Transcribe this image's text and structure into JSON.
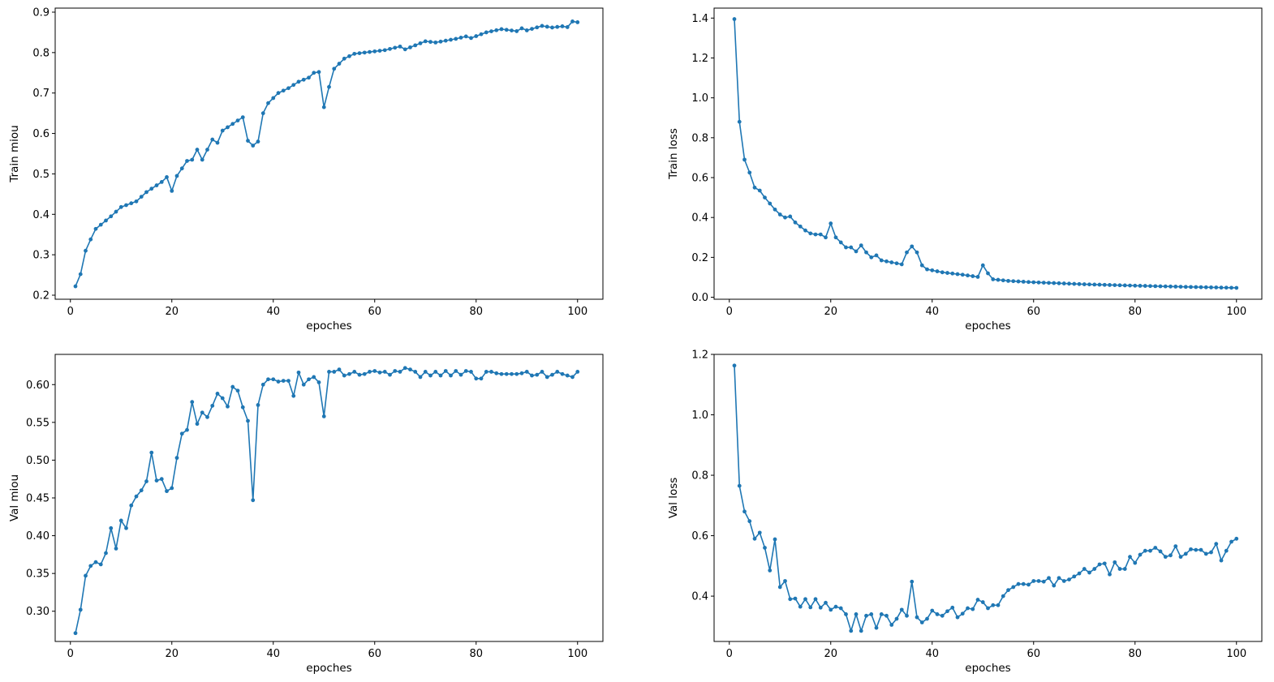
{
  "colors": {
    "line": "#1f77b4",
    "axes": "#000000",
    "background": "#ffffff"
  },
  "chart_data": [
    {
      "type": "line",
      "title": "",
      "xlabel": "epoches",
      "ylabel": "Train miou",
      "xlim": [
        -3,
        105
      ],
      "ylim": [
        0.19,
        0.91
      ],
      "xticks": [
        0,
        20,
        40,
        60,
        80,
        100
      ],
      "yticks": [
        0.2,
        0.3,
        0.4,
        0.5,
        0.6,
        0.7,
        0.8,
        0.9
      ],
      "ytick_labels": [
        "0.2",
        "0.3",
        "0.4",
        "0.5",
        "0.6",
        "0.7",
        "0.8",
        "0.9"
      ],
      "knots": [
        [
          1,
          0.222
        ],
        [
          2,
          0.252
        ],
        [
          3,
          0.31
        ],
        [
          4,
          0.338
        ],
        [
          5,
          0.364
        ],
        [
          8,
          0.395
        ],
        [
          10,
          0.418
        ],
        [
          13,
          0.432
        ],
        [
          15,
          0.455
        ],
        [
          18,
          0.48
        ],
        [
          19,
          0.492
        ],
        [
          20,
          0.458
        ],
        [
          21,
          0.495
        ],
        [
          23,
          0.532
        ],
        [
          24,
          0.535
        ],
        [
          25,
          0.56
        ],
        [
          26,
          0.535
        ],
        [
          27,
          0.56
        ],
        [
          28,
          0.585
        ],
        [
          29,
          0.577
        ],
        [
          30,
          0.607
        ],
        [
          33,
          0.632
        ],
        [
          34,
          0.64
        ],
        [
          35,
          0.582
        ],
        [
          36,
          0.57
        ],
        [
          37,
          0.58
        ],
        [
          38,
          0.65
        ],
        [
          39,
          0.675
        ],
        [
          41,
          0.7
        ],
        [
          43,
          0.712
        ],
        [
          45,
          0.728
        ],
        [
          47,
          0.738
        ],
        [
          48,
          0.75
        ],
        [
          49,
          0.752
        ],
        [
          50,
          0.665
        ],
        [
          51,
          0.715
        ],
        [
          52,
          0.76
        ],
        [
          54,
          0.785
        ],
        [
          56,
          0.797
        ],
        [
          60,
          0.803
        ],
        [
          62,
          0.806
        ],
        [
          65,
          0.815
        ],
        [
          66,
          0.808
        ],
        [
          70,
          0.828
        ],
        [
          72,
          0.825
        ],
        [
          76,
          0.834
        ],
        [
          78,
          0.84
        ],
        [
          79,
          0.836
        ],
        [
          82,
          0.85
        ],
        [
          85,
          0.858
        ],
        [
          88,
          0.853
        ],
        [
          89,
          0.86
        ],
        [
          90,
          0.855
        ],
        [
          93,
          0.866
        ],
        [
          95,
          0.862
        ],
        [
          97,
          0.865
        ],
        [
          98,
          0.863
        ],
        [
          99,
          0.877
        ],
        [
          100,
          0.875
        ]
      ]
    },
    {
      "type": "line",
      "title": "",
      "xlabel": "epoches",
      "ylabel": "Train loss",
      "xlim": [
        -3,
        105
      ],
      "ylim": [
        -0.01,
        1.45
      ],
      "xticks": [
        0,
        20,
        40,
        60,
        80,
        100
      ],
      "yticks": [
        0.0,
        0.2,
        0.4,
        0.6,
        0.8,
        1.0,
        1.2,
        1.4
      ],
      "ytick_labels": [
        "0.0",
        "0.2",
        "0.4",
        "0.6",
        "0.8",
        "1.0",
        "1.2",
        "1.4"
      ],
      "knots": [
        [
          1,
          1.395
        ],
        [
          2,
          0.88
        ],
        [
          3,
          0.69
        ],
        [
          4,
          0.625
        ],
        [
          5,
          0.55
        ],
        [
          6,
          0.535
        ],
        [
          7,
          0.5
        ],
        [
          8,
          0.47
        ],
        [
          9,
          0.44
        ],
        [
          10,
          0.415
        ],
        [
          11,
          0.4
        ],
        [
          12,
          0.405
        ],
        [
          13,
          0.375
        ],
        [
          14,
          0.355
        ],
        [
          15,
          0.335
        ],
        [
          16,
          0.32
        ],
        [
          17,
          0.315
        ],
        [
          18,
          0.315
        ],
        [
          19,
          0.3
        ],
        [
          20,
          0.37
        ],
        [
          21,
          0.3
        ],
        [
          22,
          0.275
        ],
        [
          23,
          0.25
        ],
        [
          24,
          0.25
        ],
        [
          25,
          0.23
        ],
        [
          26,
          0.26
        ],
        [
          27,
          0.225
        ],
        [
          28,
          0.2
        ],
        [
          29,
          0.21
        ],
        [
          30,
          0.185
        ],
        [
          33,
          0.17
        ],
        [
          34,
          0.165
        ],
        [
          35,
          0.225
        ],
        [
          36,
          0.255
        ],
        [
          37,
          0.225
        ],
        [
          38,
          0.16
        ],
        [
          39,
          0.14
        ],
        [
          42,
          0.125
        ],
        [
          46,
          0.113
        ],
        [
          49,
          0.102
        ],
        [
          50,
          0.16
        ],
        [
          51,
          0.12
        ],
        [
          52,
          0.09
        ],
        [
          55,
          0.082
        ],
        [
          60,
          0.075
        ],
        [
          70,
          0.065
        ],
        [
          80,
          0.058
        ],
        [
          90,
          0.052
        ],
        [
          100,
          0.047
        ]
      ]
    },
    {
      "type": "line",
      "title": "",
      "xlabel": "epoches",
      "ylabel": "Val miou",
      "xlim": [
        -3,
        105
      ],
      "ylim": [
        0.26,
        0.64
      ],
      "xticks": [
        0,
        20,
        40,
        60,
        80,
        100
      ],
      "yticks": [
        0.3,
        0.35,
        0.4,
        0.45,
        0.5,
        0.55,
        0.6
      ],
      "ytick_labels": [
        "0.30",
        "0.35",
        "0.40",
        "0.45",
        "0.50",
        "0.55",
        "0.60"
      ],
      "knots": [
        [
          1,
          0.271
        ],
        [
          2,
          0.302
        ],
        [
          3,
          0.347
        ],
        [
          4,
          0.36
        ],
        [
          5,
          0.365
        ],
        [
          6,
          0.362
        ],
        [
          7,
          0.377
        ],
        [
          8,
          0.41
        ],
        [
          9,
          0.383
        ],
        [
          10,
          0.42
        ],
        [
          11,
          0.41
        ],
        [
          12,
          0.44
        ],
        [
          13,
          0.452
        ],
        [
          14,
          0.46
        ],
        [
          15,
          0.472
        ],
        [
          16,
          0.51
        ],
        [
          17,
          0.473
        ],
        [
          18,
          0.475
        ],
        [
          19,
          0.459
        ],
        [
          20,
          0.463
        ],
        [
          21,
          0.503
        ],
        [
          22,
          0.535
        ],
        [
          23,
          0.54
        ],
        [
          24,
          0.577
        ],
        [
          25,
          0.548
        ],
        [
          26,
          0.563
        ],
        [
          27,
          0.557
        ],
        [
          28,
          0.572
        ],
        [
          29,
          0.588
        ],
        [
          30,
          0.582
        ],
        [
          31,
          0.571
        ],
        [
          32,
          0.597
        ],
        [
          33,
          0.592
        ],
        [
          34,
          0.57
        ],
        [
          35,
          0.552
        ],
        [
          36,
          0.447
        ],
        [
          37,
          0.573
        ],
        [
          38,
          0.6
        ],
        [
          39,
          0.607
        ],
        [
          40,
          0.607
        ],
        [
          41,
          0.604
        ],
        [
          42,
          0.605
        ],
        [
          43,
          0.605
        ],
        [
          44,
          0.585
        ],
        [
          45,
          0.616
        ],
        [
          46,
          0.6
        ],
        [
          47,
          0.607
        ],
        [
          48,
          0.61
        ],
        [
          49,
          0.603
        ],
        [
          50,
          0.558
        ],
        [
          51,
          0.617
        ],
        [
          52,
          0.617
        ],
        [
          53,
          0.62
        ],
        [
          54,
          0.612
        ],
        [
          55,
          0.614
        ],
        [
          56,
          0.617
        ],
        [
          57,
          0.613
        ],
        [
          58,
          0.614
        ],
        [
          59,
          0.617
        ],
        [
          60,
          0.618
        ],
        [
          61,
          0.616
        ],
        [
          62,
          0.617
        ],
        [
          63,
          0.613
        ],
        [
          64,
          0.618
        ],
        [
          65,
          0.617
        ],
        [
          66,
          0.622
        ],
        [
          67,
          0.62
        ],
        [
          68,
          0.617
        ],
        [
          69,
          0.61
        ],
        [
          70,
          0.617
        ],
        [
          71,
          0.612
        ],
        [
          72,
          0.617
        ],
        [
          73,
          0.612
        ],
        [
          74,
          0.618
        ],
        [
          75,
          0.612
        ],
        [
          76,
          0.618
        ],
        [
          77,
          0.613
        ],
        [
          78,
          0.618
        ],
        [
          79,
          0.617
        ],
        [
          80,
          0.608
        ],
        [
          81,
          0.608
        ],
        [
          82,
          0.617
        ],
        [
          83,
          0.617
        ],
        [
          84,
          0.615
        ],
        [
          85,
          0.614
        ],
        [
          86,
          0.614
        ],
        [
          87,
          0.614
        ],
        [
          88,
          0.614
        ],
        [
          89,
          0.615
        ],
        [
          90,
          0.617
        ],
        [
          91,
          0.612
        ],
        [
          92,
          0.613
        ],
        [
          93,
          0.617
        ],
        [
          94,
          0.61
        ],
        [
          95,
          0.613
        ],
        [
          96,
          0.617
        ],
        [
          97,
          0.614
        ],
        [
          98,
          0.612
        ],
        [
          99,
          0.61
        ],
        [
          100,
          0.617
        ]
      ]
    },
    {
      "type": "line",
      "title": "",
      "xlabel": "epoches",
      "ylabel": "Val loss",
      "xlim": [
        -3,
        105
      ],
      "ylim": [
        0.25,
        1.2
      ],
      "xticks": [
        0,
        20,
        40,
        60,
        80,
        100
      ],
      "yticks": [
        0.4,
        0.6,
        0.8,
        1.0,
        1.2
      ],
      "ytick_labels": [
        "0.4",
        "0.6",
        "0.8",
        "1.0",
        "1.2"
      ],
      "knots": [
        [
          1,
          1.163
        ],
        [
          2,
          0.765
        ],
        [
          3,
          0.68
        ],
        [
          4,
          0.648
        ],
        [
          5,
          0.59
        ],
        [
          6,
          0.61
        ],
        [
          7,
          0.56
        ],
        [
          8,
          0.485
        ],
        [
          9,
          0.588
        ],
        [
          10,
          0.43
        ],
        [
          11,
          0.45
        ],
        [
          12,
          0.39
        ],
        [
          13,
          0.392
        ],
        [
          14,
          0.365
        ],
        [
          15,
          0.39
        ],
        [
          16,
          0.363
        ],
        [
          17,
          0.39
        ],
        [
          18,
          0.362
        ],
        [
          19,
          0.378
        ],
        [
          20,
          0.355
        ],
        [
          21,
          0.365
        ],
        [
          22,
          0.36
        ],
        [
          23,
          0.34
        ],
        [
          24,
          0.285
        ],
        [
          25,
          0.34
        ],
        [
          26,
          0.285
        ],
        [
          27,
          0.335
        ],
        [
          28,
          0.34
        ],
        [
          29,
          0.295
        ],
        [
          30,
          0.34
        ],
        [
          31,
          0.335
        ],
        [
          32,
          0.305
        ],
        [
          33,
          0.325
        ],
        [
          34,
          0.355
        ],
        [
          35,
          0.335
        ],
        [
          36,
          0.448
        ],
        [
          37,
          0.33
        ],
        [
          38,
          0.313
        ],
        [
          39,
          0.325
        ],
        [
          40,
          0.352
        ],
        [
          41,
          0.34
        ],
        [
          42,
          0.335
        ],
        [
          43,
          0.35
        ],
        [
          44,
          0.362
        ],
        [
          45,
          0.33
        ],
        [
          46,
          0.342
        ],
        [
          47,
          0.36
        ],
        [
          48,
          0.357
        ],
        [
          49,
          0.388
        ],
        [
          50,
          0.38
        ],
        [
          51,
          0.36
        ],
        [
          52,
          0.37
        ],
        [
          53,
          0.37
        ],
        [
          54,
          0.4
        ],
        [
          55,
          0.42
        ],
        [
          56,
          0.43
        ],
        [
          57,
          0.44
        ],
        [
          58,
          0.44
        ],
        [
          59,
          0.438
        ],
        [
          60,
          0.45
        ],
        [
          61,
          0.45
        ],
        [
          62,
          0.448
        ],
        [
          63,
          0.46
        ],
        [
          64,
          0.435
        ],
        [
          65,
          0.46
        ],
        [
          66,
          0.45
        ],
        [
          67,
          0.455
        ],
        [
          68,
          0.465
        ],
        [
          69,
          0.475
        ],
        [
          70,
          0.49
        ],
        [
          71,
          0.478
        ],
        [
          72,
          0.49
        ],
        [
          73,
          0.505
        ],
        [
          74,
          0.508
        ],
        [
          75,
          0.472
        ],
        [
          76,
          0.512
        ],
        [
          77,
          0.49
        ],
        [
          78,
          0.49
        ],
        [
          79,
          0.53
        ],
        [
          80,
          0.51
        ],
        [
          81,
          0.537
        ],
        [
          82,
          0.55
        ],
        [
          83,
          0.55
        ],
        [
          84,
          0.56
        ],
        [
          85,
          0.548
        ],
        [
          86,
          0.53
        ],
        [
          87,
          0.535
        ],
        [
          88,
          0.565
        ],
        [
          89,
          0.53
        ],
        [
          90,
          0.54
        ],
        [
          91,
          0.555
        ],
        [
          92,
          0.553
        ],
        [
          93,
          0.553
        ],
        [
          94,
          0.54
        ],
        [
          95,
          0.545
        ],
        [
          96,
          0.573
        ],
        [
          97,
          0.518
        ],
        [
          98,
          0.55
        ],
        [
          99,
          0.58
        ],
        [
          100,
          0.59
        ]
      ]
    }
  ]
}
